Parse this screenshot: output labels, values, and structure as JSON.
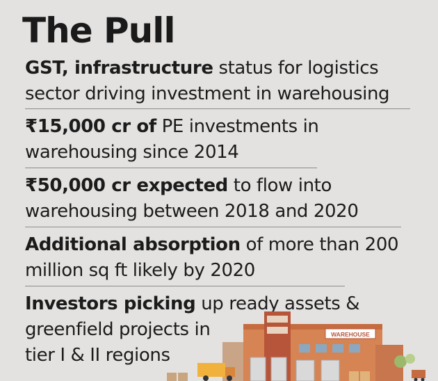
{
  "title": "The Pull",
  "items": [
    {
      "bold": "GST, infrastructure",
      "rest": " status for logistics",
      "line2": "sector driving investment in warehousing"
    },
    {
      "bold": "₹15,000 cr of",
      "rest": " PE investments in",
      "line2": "warehousing since 2014"
    },
    {
      "bold": "₹50,000 cr expected",
      "rest": " to flow into",
      "line2": "warehousing between 2018 and 2020"
    },
    {
      "bold": "Additional absorption",
      "rest": " of more than 200",
      "line2": "million sq ft likely by 2020"
    },
    {
      "bold": "Investors picking",
      "rest": " up ready assets &",
      "line2": "greenfield projects in",
      "line3": "tier I & II regions"
    }
  ],
  "illustration": {
    "sign_text": "WAREHOUSE",
    "colors": {
      "building": "#d78454",
      "roof": "#c56b3f",
      "tower": "#b7553a",
      "blue": "#8ba8c0",
      "green": "#9cb86b"
    }
  }
}
